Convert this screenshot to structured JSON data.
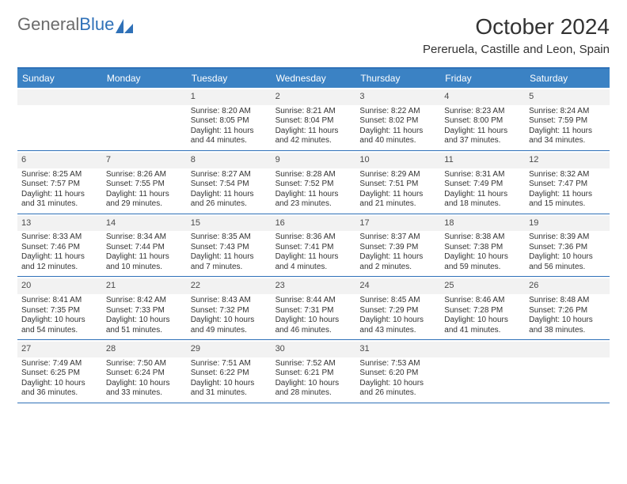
{
  "brand": {
    "part1": "General",
    "part2": "Blue"
  },
  "title": "October 2024",
  "location": "Pereruela, Castille and Leon, Spain",
  "colors": {
    "header_bar": "#3b82c4",
    "accent_line": "#2f71b8",
    "daynum_bg": "#f2f2f2",
    "background": "#ffffff",
    "text": "#333333"
  },
  "typography": {
    "title_fontsize": 28,
    "location_fontsize": 15,
    "head_fontsize": 12,
    "cell_fontsize": 10
  },
  "day_headers": [
    "Sunday",
    "Monday",
    "Tuesday",
    "Wednesday",
    "Thursday",
    "Friday",
    "Saturday"
  ],
  "weeks": [
    [
      null,
      null,
      {
        "n": "1",
        "sr": "Sunrise: 8:20 AM",
        "ss": "Sunset: 8:05 PM",
        "dl": "Daylight: 11 hours and 44 minutes."
      },
      {
        "n": "2",
        "sr": "Sunrise: 8:21 AM",
        "ss": "Sunset: 8:04 PM",
        "dl": "Daylight: 11 hours and 42 minutes."
      },
      {
        "n": "3",
        "sr": "Sunrise: 8:22 AM",
        "ss": "Sunset: 8:02 PM",
        "dl": "Daylight: 11 hours and 40 minutes."
      },
      {
        "n": "4",
        "sr": "Sunrise: 8:23 AM",
        "ss": "Sunset: 8:00 PM",
        "dl": "Daylight: 11 hours and 37 minutes."
      },
      {
        "n": "5",
        "sr": "Sunrise: 8:24 AM",
        "ss": "Sunset: 7:59 PM",
        "dl": "Daylight: 11 hours and 34 minutes."
      }
    ],
    [
      {
        "n": "6",
        "sr": "Sunrise: 8:25 AM",
        "ss": "Sunset: 7:57 PM",
        "dl": "Daylight: 11 hours and 31 minutes."
      },
      {
        "n": "7",
        "sr": "Sunrise: 8:26 AM",
        "ss": "Sunset: 7:55 PM",
        "dl": "Daylight: 11 hours and 29 minutes."
      },
      {
        "n": "8",
        "sr": "Sunrise: 8:27 AM",
        "ss": "Sunset: 7:54 PM",
        "dl": "Daylight: 11 hours and 26 minutes."
      },
      {
        "n": "9",
        "sr": "Sunrise: 8:28 AM",
        "ss": "Sunset: 7:52 PM",
        "dl": "Daylight: 11 hours and 23 minutes."
      },
      {
        "n": "10",
        "sr": "Sunrise: 8:29 AM",
        "ss": "Sunset: 7:51 PM",
        "dl": "Daylight: 11 hours and 21 minutes."
      },
      {
        "n": "11",
        "sr": "Sunrise: 8:31 AM",
        "ss": "Sunset: 7:49 PM",
        "dl": "Daylight: 11 hours and 18 minutes."
      },
      {
        "n": "12",
        "sr": "Sunrise: 8:32 AM",
        "ss": "Sunset: 7:47 PM",
        "dl": "Daylight: 11 hours and 15 minutes."
      }
    ],
    [
      {
        "n": "13",
        "sr": "Sunrise: 8:33 AM",
        "ss": "Sunset: 7:46 PM",
        "dl": "Daylight: 11 hours and 12 minutes."
      },
      {
        "n": "14",
        "sr": "Sunrise: 8:34 AM",
        "ss": "Sunset: 7:44 PM",
        "dl": "Daylight: 11 hours and 10 minutes."
      },
      {
        "n": "15",
        "sr": "Sunrise: 8:35 AM",
        "ss": "Sunset: 7:43 PM",
        "dl": "Daylight: 11 hours and 7 minutes."
      },
      {
        "n": "16",
        "sr": "Sunrise: 8:36 AM",
        "ss": "Sunset: 7:41 PM",
        "dl": "Daylight: 11 hours and 4 minutes."
      },
      {
        "n": "17",
        "sr": "Sunrise: 8:37 AM",
        "ss": "Sunset: 7:39 PM",
        "dl": "Daylight: 11 hours and 2 minutes."
      },
      {
        "n": "18",
        "sr": "Sunrise: 8:38 AM",
        "ss": "Sunset: 7:38 PM",
        "dl": "Daylight: 10 hours and 59 minutes."
      },
      {
        "n": "19",
        "sr": "Sunrise: 8:39 AM",
        "ss": "Sunset: 7:36 PM",
        "dl": "Daylight: 10 hours and 56 minutes."
      }
    ],
    [
      {
        "n": "20",
        "sr": "Sunrise: 8:41 AM",
        "ss": "Sunset: 7:35 PM",
        "dl": "Daylight: 10 hours and 54 minutes."
      },
      {
        "n": "21",
        "sr": "Sunrise: 8:42 AM",
        "ss": "Sunset: 7:33 PM",
        "dl": "Daylight: 10 hours and 51 minutes."
      },
      {
        "n": "22",
        "sr": "Sunrise: 8:43 AM",
        "ss": "Sunset: 7:32 PM",
        "dl": "Daylight: 10 hours and 49 minutes."
      },
      {
        "n": "23",
        "sr": "Sunrise: 8:44 AM",
        "ss": "Sunset: 7:31 PM",
        "dl": "Daylight: 10 hours and 46 minutes."
      },
      {
        "n": "24",
        "sr": "Sunrise: 8:45 AM",
        "ss": "Sunset: 7:29 PM",
        "dl": "Daylight: 10 hours and 43 minutes."
      },
      {
        "n": "25",
        "sr": "Sunrise: 8:46 AM",
        "ss": "Sunset: 7:28 PM",
        "dl": "Daylight: 10 hours and 41 minutes."
      },
      {
        "n": "26",
        "sr": "Sunrise: 8:48 AM",
        "ss": "Sunset: 7:26 PM",
        "dl": "Daylight: 10 hours and 38 minutes."
      }
    ],
    [
      {
        "n": "27",
        "sr": "Sunrise: 7:49 AM",
        "ss": "Sunset: 6:25 PM",
        "dl": "Daylight: 10 hours and 36 minutes."
      },
      {
        "n": "28",
        "sr": "Sunrise: 7:50 AM",
        "ss": "Sunset: 6:24 PM",
        "dl": "Daylight: 10 hours and 33 minutes."
      },
      {
        "n": "29",
        "sr": "Sunrise: 7:51 AM",
        "ss": "Sunset: 6:22 PM",
        "dl": "Daylight: 10 hours and 31 minutes."
      },
      {
        "n": "30",
        "sr": "Sunrise: 7:52 AM",
        "ss": "Sunset: 6:21 PM",
        "dl": "Daylight: 10 hours and 28 minutes."
      },
      {
        "n": "31",
        "sr": "Sunrise: 7:53 AM",
        "ss": "Sunset: 6:20 PM",
        "dl": "Daylight: 10 hours and 26 minutes."
      },
      null,
      null
    ]
  ]
}
